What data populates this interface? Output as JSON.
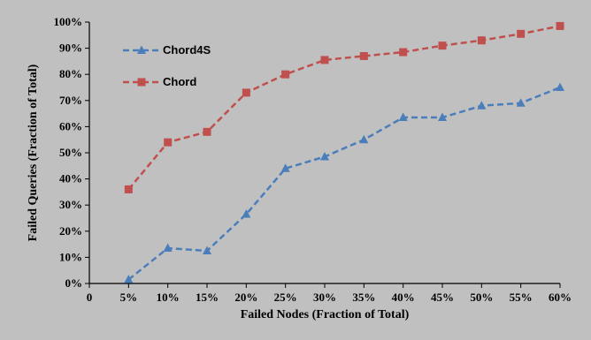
{
  "chart_data": {
    "type": "line",
    "title": "",
    "xlabel": "Failed Nodes (Fraction of Total)",
    "ylabel": "Failed Queries (Fraction of Total)",
    "x_tick_labels": [
      "0",
      "5%",
      "10%",
      "15%",
      "20%",
      "25%",
      "30%",
      "35%",
      "40%",
      "45%",
      "50%",
      "55%",
      "60%"
    ],
    "y_tick_labels": [
      "0%",
      "10%",
      "20%",
      "30%",
      "40%",
      "50%",
      "60%",
      "70%",
      "80%",
      "90%",
      "100%"
    ],
    "categories": [
      "5%",
      "10%",
      "15%",
      "20%",
      "25%",
      "30%",
      "35%",
      "40%",
      "45%",
      "50%",
      "55%",
      "60%"
    ],
    "ylim": [
      0,
      100
    ],
    "grid": false,
    "legend_position": "top-left",
    "series": [
      {
        "name": "Chord4S",
        "color": "#4a7ebb",
        "marker": "triangle",
        "line_style": "dashed",
        "values": [
          1.5,
          13.5,
          12.5,
          26.5,
          44,
          48.5,
          55,
          63.5,
          63.5,
          68,
          69,
          75
        ]
      },
      {
        "name": "Chord",
        "color": "#c0504d",
        "marker": "square",
        "line_style": "dashed",
        "values": [
          36,
          54,
          58,
          73,
          80,
          85.5,
          87,
          88.5,
          91,
          93,
          95.5,
          98.5
        ]
      }
    ]
  }
}
